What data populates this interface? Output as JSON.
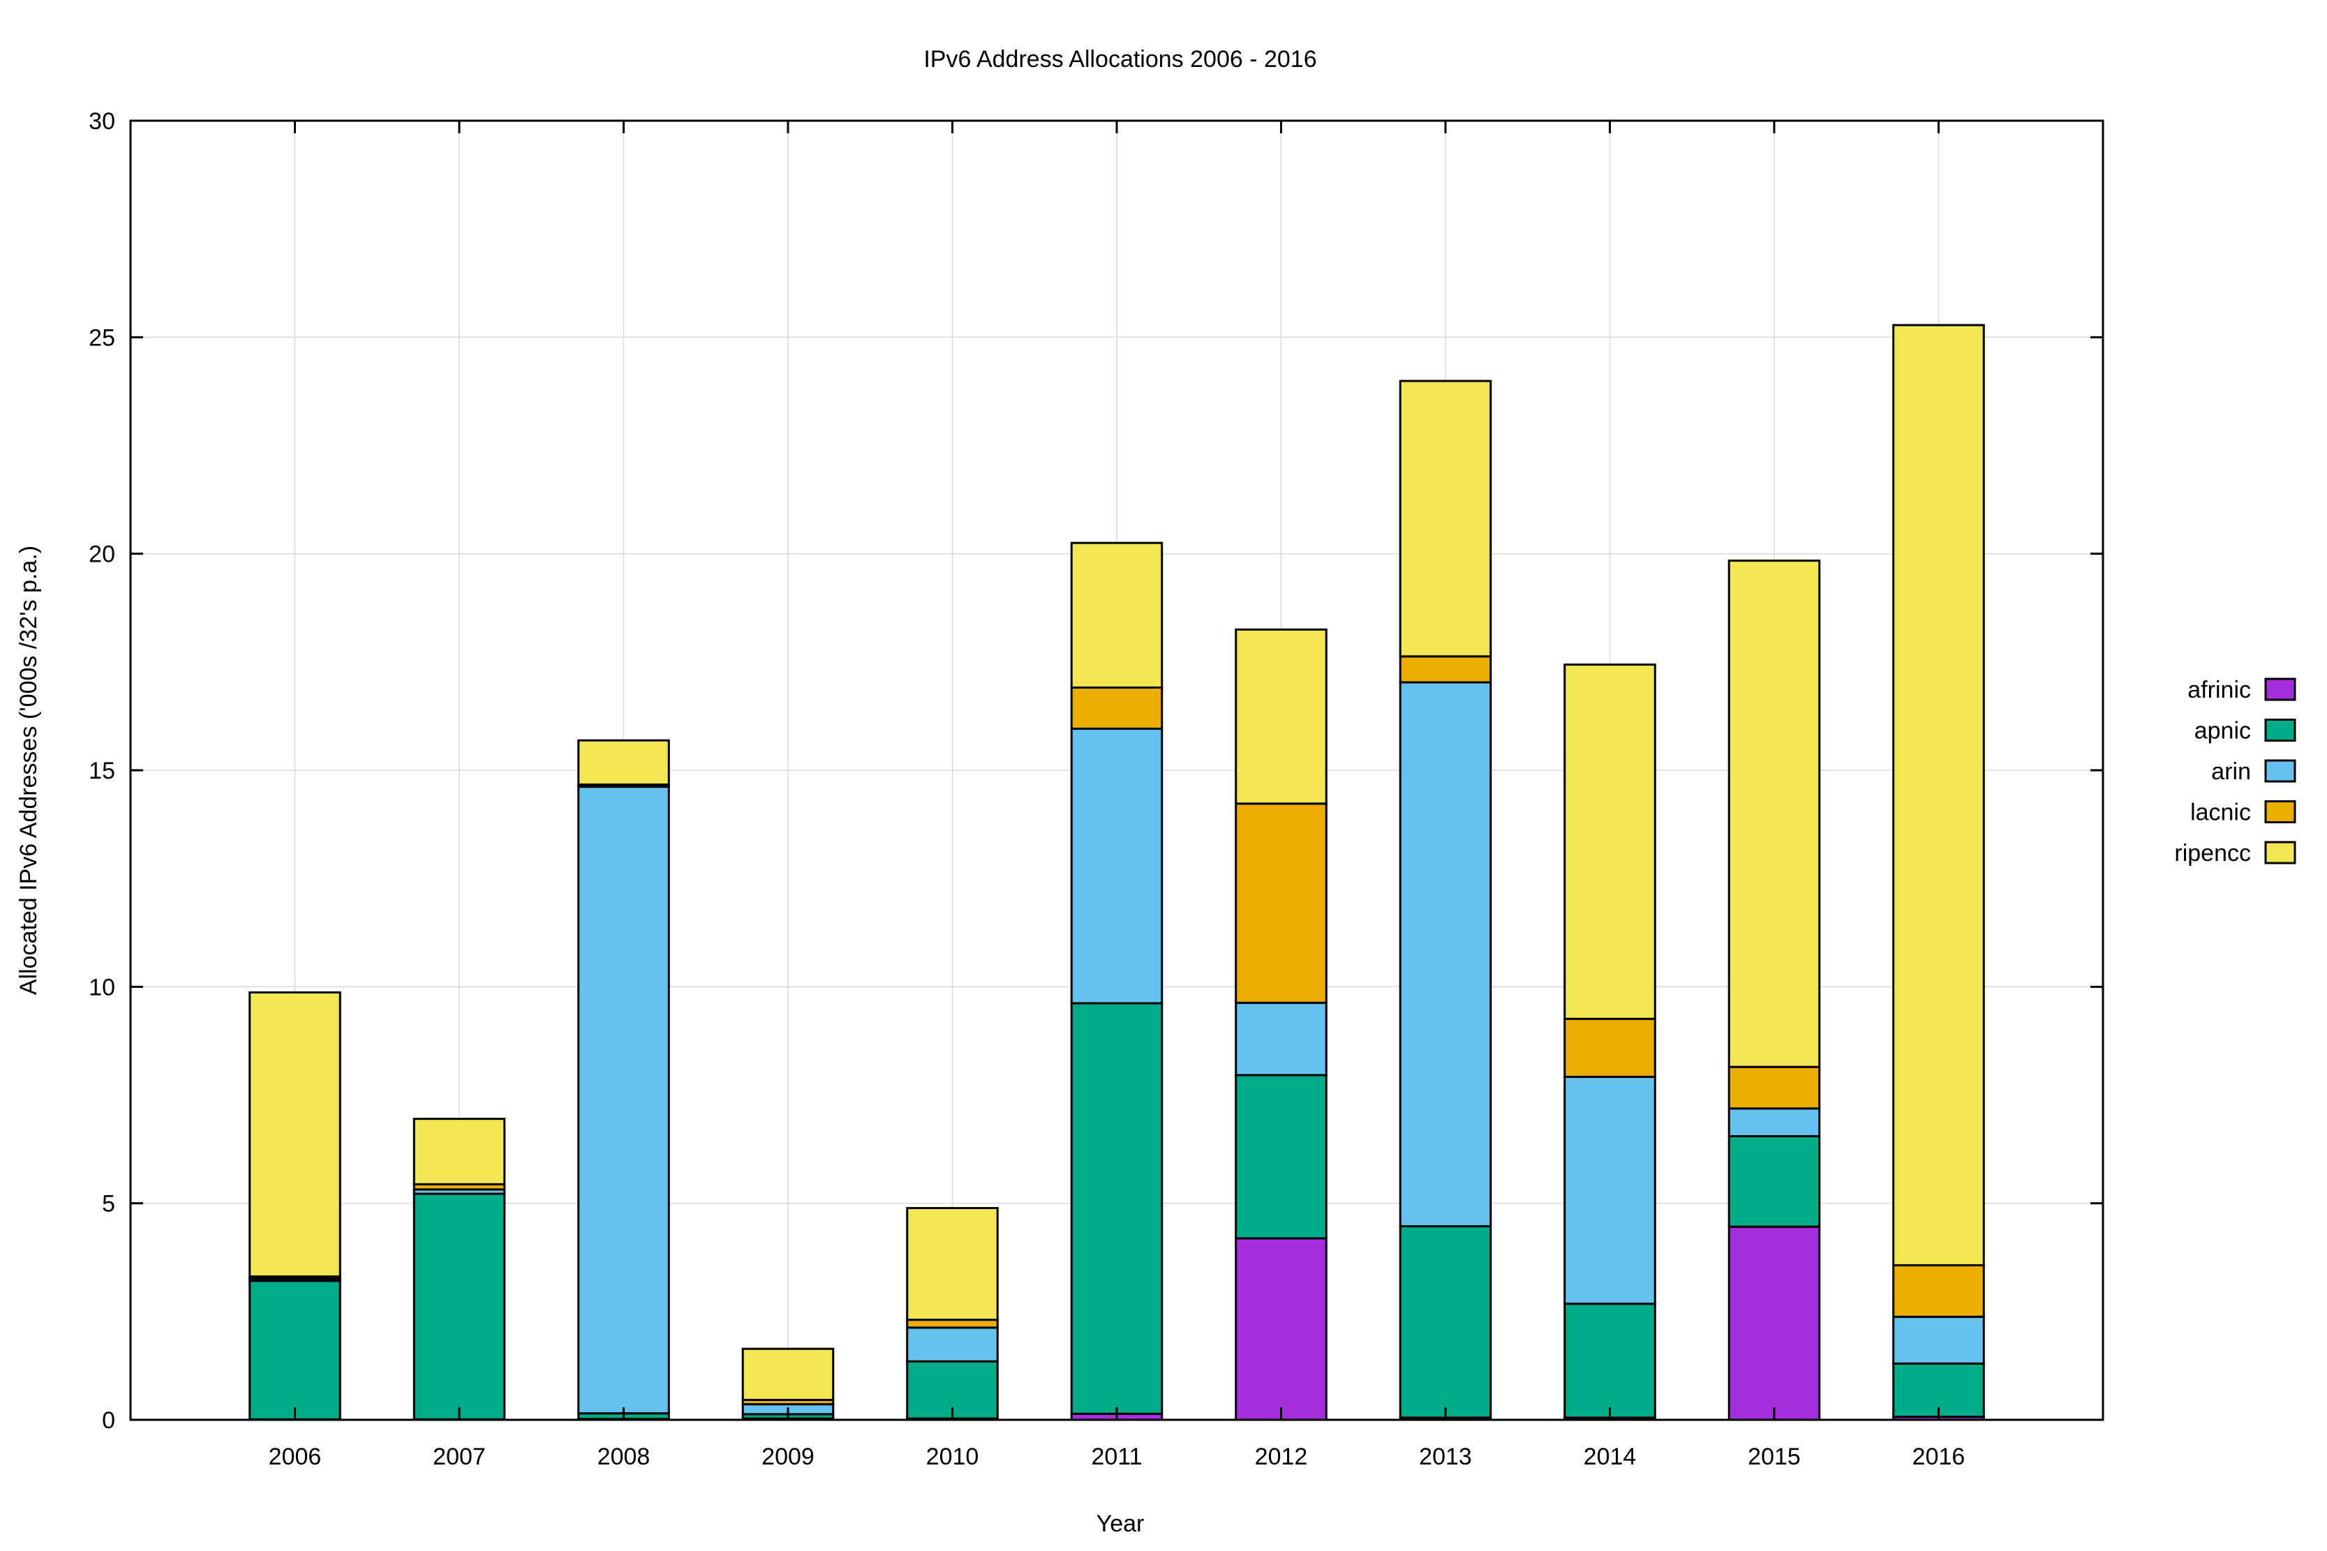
{
  "chart_data": {
    "type": "bar",
    "stacked": true,
    "title": "IPv6 Address Allocations 2006 - 2016",
    "xlabel": "Year",
    "ylabel": "Allocated IPv6 Addresses ('000s /32's p.a.)",
    "ylim": [
      0,
      30
    ],
    "yticks": [
      0,
      5,
      10,
      15,
      20,
      25,
      30
    ],
    "ytick_labels": [
      "0",
      "5",
      "10",
      "15",
      "20",
      "25",
      "30"
    ],
    "grid": true,
    "legend_position": "right",
    "categories": [
      "2006",
      "2007",
      "2008",
      "2009",
      "2010",
      "2011",
      "2012",
      "2013",
      "2014",
      "2015",
      "2016"
    ],
    "series": [
      {
        "name": "afrinic",
        "color": "#a52fdd",
        "values": [
          0.01,
          0.01,
          0.02,
          0.03,
          0.03,
          0.14,
          4.19,
          0.05,
          0.05,
          4.46,
          0.07
        ]
      },
      {
        "name": "apnic",
        "color": "#00ab87",
        "values": [
          3.2,
          5.21,
          0.13,
          0.1,
          1.32,
          9.48,
          3.77,
          4.42,
          2.63,
          2.09,
          1.23
        ]
      },
      {
        "name": "arin",
        "color": "#66c1ef",
        "values": [
          0.05,
          0.1,
          14.47,
          0.23,
          0.78,
          6.34,
          1.67,
          12.56,
          5.24,
          0.64,
          1.08
        ]
      },
      {
        "name": "lacnic",
        "color": "#ebad00",
        "values": [
          0.05,
          0.12,
          0.05,
          0.1,
          0.18,
          0.95,
          4.6,
          0.6,
          1.34,
          0.96,
          1.19
        ]
      },
      {
        "name": "ripencc",
        "color": "#f2e655",
        "values": [
          6.56,
          1.51,
          1.02,
          1.18,
          2.58,
          3.34,
          4.02,
          6.36,
          8.18,
          11.69,
          21.71
        ]
      }
    ]
  }
}
